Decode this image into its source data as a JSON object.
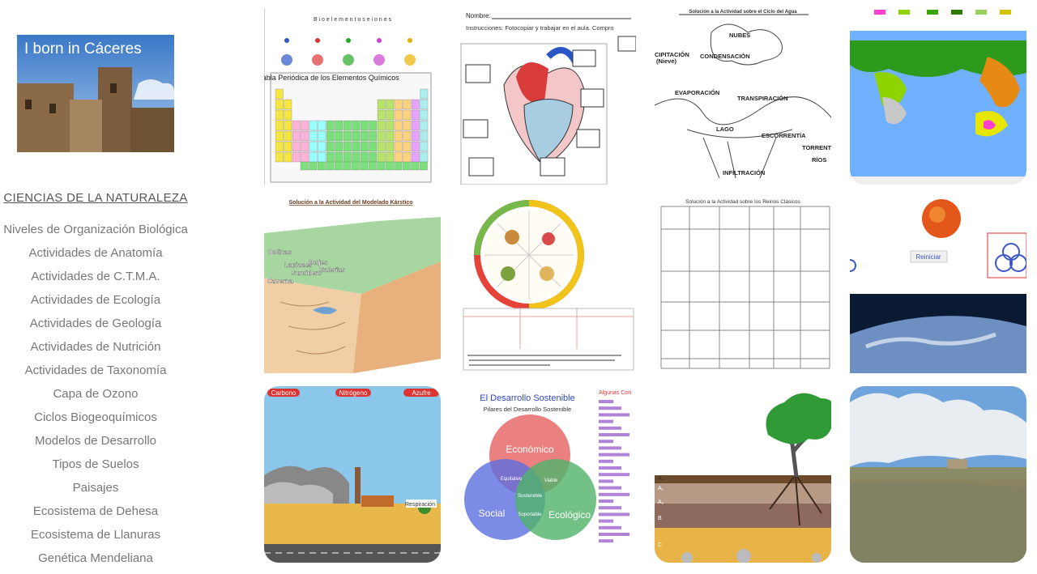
{
  "sidebar": {
    "logo_text": "I born in Cáceres",
    "heading": "CIENCIAS DE LA NATURALEZA",
    "menu": [
      "Niveles de Organización Biológica",
      "Actividades de Anatomía",
      "Actividades de C.T.M.A.",
      "Actividades de Ecología",
      "Actividades de Geología",
      "Actividades de Nutrición",
      "Actividades de Taxonomía",
      "Capa de Ozono",
      "Ciclos Biogeoquímicos",
      "Modelos de Desarrollo",
      "Tipos de Suelos",
      "Paisajes",
      "Ecosistema de Dehesa",
      "Ecosistema de Llanuras",
      "Genética Mendeliana"
    ]
  },
  "gallery": {
    "tiles": [
      {
        "labels": [
          "B i o e l e m e n t o s   e   i o n e s",
          "Tabla Periódica de los Elementos Químicos"
        ]
      },
      {
        "labels": [
          "Nombre:",
          "Instrucciones: Fotocopiar y trabajar en el aula. Compro"
        ]
      },
      {
        "labels": [
          "Solución a la Actividad sobre el Ciclo del Agua",
          "NUBES",
          "CONDENSACIÓN",
          "EVAPORACIÓN",
          "TRANSPIRACIÓN",
          "LAGO",
          "ESCORRENTÍA",
          "INFILTRACIÓN",
          "CIPITACIÓN",
          "(Nieve)",
          "TORRENTI",
          "RÍOS"
        ]
      },
      {
        "labels": []
      },
      {
        "labels": [
          "Solución a la Actividad del Modelado Kárstico",
          "Dolinas",
          "Lapiaces",
          "Poljes",
          "Sumidero",
          "Galerías",
          "Caverna"
        ]
      },
      {
        "labels": []
      },
      {
        "labels": [
          "Solución a la Actividad sobre los Reinos Clásicos"
        ]
      },
      {
        "labels": [
          "Reiniciar"
        ]
      },
      {
        "labels": [
          "Carbono",
          "Nitrógeno",
          "Azufre",
          "Respiración"
        ]
      },
      {
        "labels": [
          "El Desarrollo Sostenible",
          "Pilares del Desarrollo Sostenible",
          "Económico",
          "Social",
          "Ecológico",
          "Sostenible",
          "Equitativo",
          "Viable",
          "Soportable",
          "Algunas Con"
        ]
      },
      {
        "labels": [
          "A₀",
          "A₁",
          "A₂",
          "B",
          "C"
        ]
      },
      {
        "labels": []
      }
    ]
  }
}
